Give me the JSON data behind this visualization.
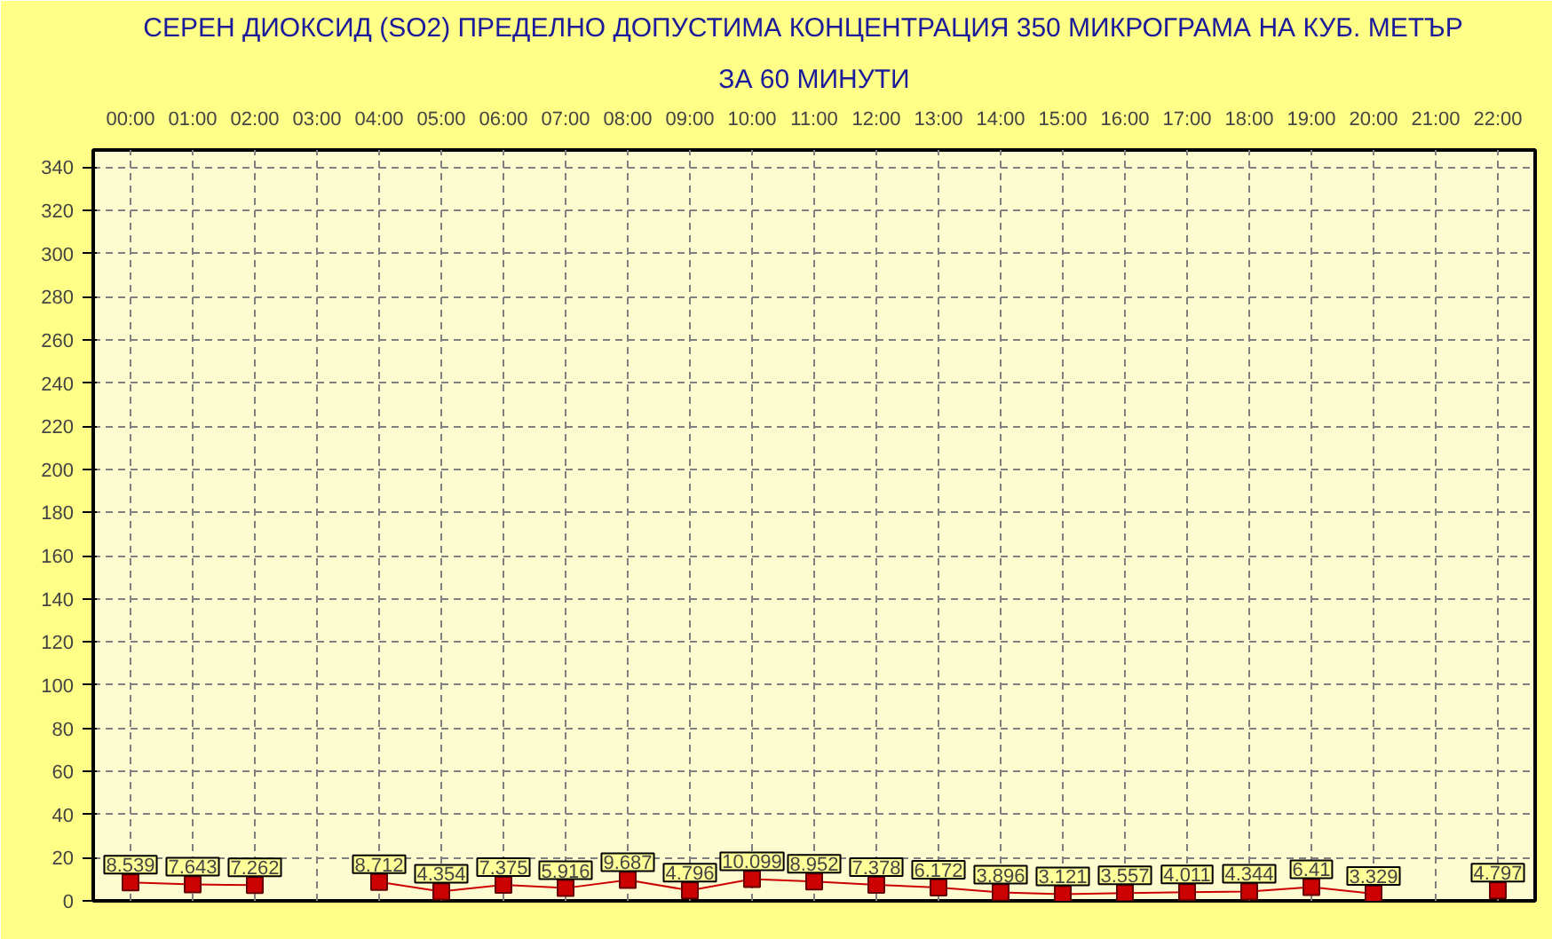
{
  "chart_data": {
    "type": "line",
    "title": "СЕРЕН ДИОКСИД  (SO2)  ПРЕДЕЛНО ДОПУСТИМА КОНЦЕНТРАЦИЯ 350 МИКРОГРАМА  НА КУБ. МЕТЪР",
    "subtitle": "ЗА 60 МИНУТИ",
    "categories": [
      "00:00",
      "01:00",
      "02:00",
      "03:00",
      "04:00",
      "05:00",
      "06:00",
      "07:00",
      "08:00",
      "09:00",
      "10:00",
      "11:00",
      "12:00",
      "13:00",
      "14:00",
      "15:00",
      "16:00",
      "17:00",
      "18:00",
      "19:00",
      "20:00",
      "21:00",
      "22:00"
    ],
    "series": [
      {
        "color": "#cc0000",
        "values": [
          8.539,
          7.643,
          7.262,
          null,
          8.712,
          4.354,
          7.375,
          5.916,
          9.687,
          4.796,
          10.099,
          8.952,
          7.378,
          6.172,
          3.896,
          3.121,
          3.557,
          4.011,
          4.344,
          6.41,
          3.329,
          null,
          4.797
        ]
      }
    ],
    "ylim": [
      0,
      348
    ],
    "yticks": [
      0,
      20,
      40,
      60,
      80,
      100,
      120,
      140,
      160,
      180,
      200,
      220,
      240,
      260,
      280,
      300,
      320,
      340
    ],
    "grid": true,
    "marker": "square",
    "line_style": "solid",
    "data_labels": true
  }
}
